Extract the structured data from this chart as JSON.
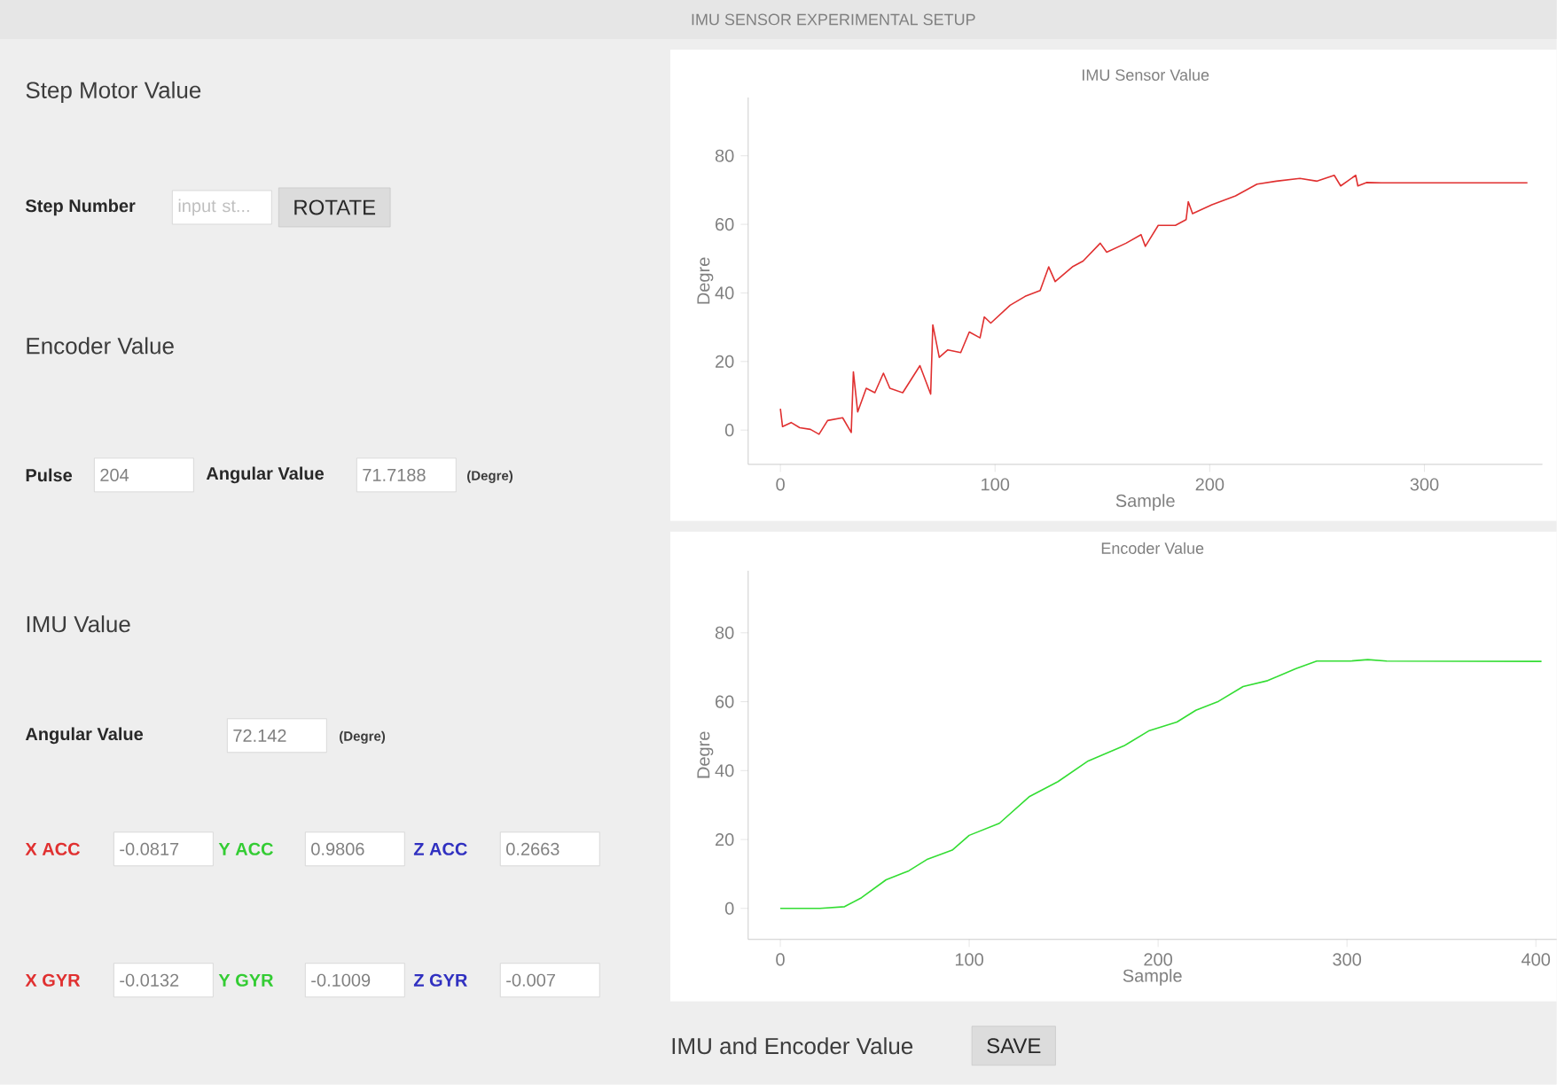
{
  "chart_data": [
    {
      "type": "other",
      "title": "IMU SENSOR EXPERIMENTAL SETUP",
      "annotations": [
        "Step Motor Value",
        "Step Number",
        "input st...",
        "ROTATE",
        "Encoder Value",
        "Pulse",
        "204",
        "Angular Value",
        "71.7188",
        "(Degre)",
        "IMU Value",
        "Angular Value",
        "72.142",
        "(Degre)",
        "X ACC",
        "-0.0817",
        "Y ACC",
        "0.9806",
        "Z ACC",
        "0.2663",
        "X GYR",
        "-0.0132",
        "Y GYR",
        "-0.1009",
        "Z GYR",
        "-0.007",
        "IMU and Encoder Value",
        "SAVE"
      ]
    },
    {
      "type": "line",
      "title": "IMU Sensor Value",
      "xlabel": "Sample",
      "ylabel": "Degre",
      "color": "#e03030",
      "xlim": [
        -15,
        355
      ],
      "ylim": [
        -10,
        97
      ],
      "xticks": [
        0,
        100,
        200,
        300
      ],
      "yticks": [
        0,
        20,
        40,
        60,
        80
      ],
      "x": [
        0,
        1,
        5,
        9,
        14,
        18,
        22,
        29,
        33,
        34,
        36,
        40,
        44,
        48,
        51,
        57,
        65,
        70,
        71,
        74,
        78,
        84,
        88,
        93,
        95,
        98,
        107,
        114,
        121,
        125,
        128,
        136,
        141,
        149,
        152,
        161,
        168,
        170,
        176,
        184,
        189,
        190,
        192,
        201,
        212,
        222,
        231,
        242,
        250,
        258,
        261,
        268,
        269,
        273,
        280,
        348
      ],
      "values": [
        6.2,
        1,
        2.2,
        0.7,
        0.2,
        -1.2,
        2.8,
        3.6,
        -0.7,
        17,
        5.3,
        12.2,
        10.9,
        16.6,
        12.2,
        10.9,
        18.8,
        10.5,
        30.7,
        21.2,
        23.4,
        22.6,
        28.6,
        26.9,
        33,
        31.2,
        36.4,
        39,
        40.7,
        47.6,
        43.3,
        47.6,
        49.3,
        54.5,
        51.9,
        54.5,
        57,
        53.6,
        59.7,
        59.7,
        61.4,
        66.6,
        63.1,
        65.7,
        68.3,
        71.7,
        72.6,
        73.4,
        72.6,
        74.3,
        71.2,
        74.3,
        71.2,
        72.2,
        72.1,
        72.1
      ]
    },
    {
      "type": "line",
      "title": "Encoder Value",
      "xlabel": "Sample",
      "ylabel": "Degre",
      "color": "#33dd33",
      "xlim": [
        -17,
        411
      ],
      "ylim": [
        -9,
        98
      ],
      "xticks": [
        0,
        100,
        200,
        300,
        400
      ],
      "yticks": [
        0,
        20,
        40,
        60,
        80
      ],
      "x": [
        0,
        21,
        34,
        43,
        56,
        68,
        78,
        91,
        100,
        116,
        132,
        147,
        163,
        182,
        195,
        210,
        220,
        232,
        245,
        258,
        273,
        284,
        302,
        311,
        321,
        403
      ],
      "values": [
        0,
        0,
        0.5,
        3.1,
        8.3,
        10.9,
        14.3,
        16.9,
        21.2,
        24.7,
        32.5,
        36.8,
        42.8,
        47.2,
        51.5,
        54.1,
        57.5,
        60.1,
        64.4,
        66.1,
        69.6,
        71.8,
        71.8,
        72.2,
        71.8,
        71.7
      ]
    }
  ]
}
